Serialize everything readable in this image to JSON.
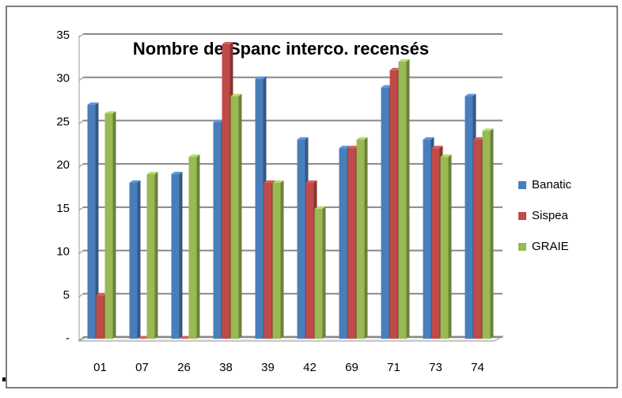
{
  "chart_data": {
    "type": "bar",
    "title": "Nombre de Spanc interco. recensés",
    "categories": [
      "01",
      "07",
      "26",
      "38",
      "39",
      "42",
      "69",
      "71",
      "73",
      "74"
    ],
    "series": [
      {
        "name": "Banatic",
        "color": "#4a7ebb",
        "values": [
          27,
          18,
          19,
          25,
          30,
          23,
          22,
          29,
          23,
          28
        ]
      },
      {
        "name": "Sispea",
        "color": "#be4b48",
        "values": [
          5,
          0,
          0,
          34,
          18,
          18,
          22,
          31,
          22,
          23
        ]
      },
      {
        "name": "GRAIE",
        "color": "#98b954",
        "values": [
          26,
          19,
          21,
          28,
          18,
          15,
          23,
          32,
          21,
          24
        ]
      }
    ],
    "ylim": [
      0,
      35
    ],
    "yticks": [
      {
        "value": 0,
        "label": "-"
      },
      5,
      10,
      15,
      20,
      25,
      30,
      35
    ],
    "grid": true,
    "legend": "right"
  }
}
